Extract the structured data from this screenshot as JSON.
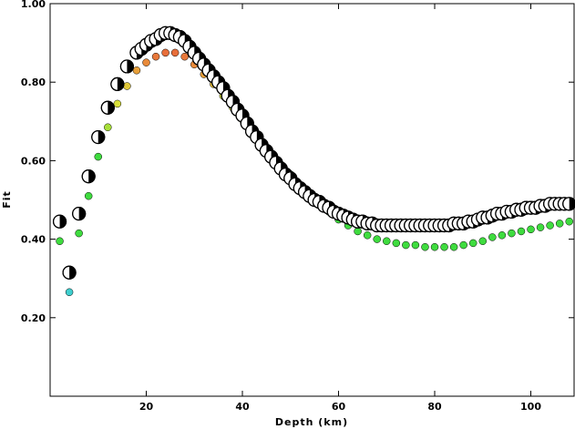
{
  "chart_data": {
    "type": "scatter",
    "title": "",
    "xlabel": "Depth (km)",
    "ylabel": "Fit",
    "xlim": [
      0,
      109
    ],
    "ylim": [
      0.0,
      1.0
    ],
    "xticks": [
      20,
      40,
      60,
      80,
      100
    ],
    "xtick_labels": [
      "20",
      "40",
      "60",
      "80",
      "100"
    ],
    "yticks": [
      0.2,
      0.4,
      0.6,
      0.8,
      1.0
    ],
    "ytick_labels": [
      "0.20",
      "0.40",
      "0.60",
      "0.80",
      "1.00"
    ],
    "grid": false,
    "legend": "none",
    "series": [
      {
        "marker": "filled-circle",
        "x": [
          2,
          4,
          6,
          8,
          10,
          12,
          14,
          16,
          18,
          20,
          22,
          24,
          26,
          28,
          30,
          32,
          34,
          36,
          38,
          40,
          42,
          44,
          46,
          48,
          50,
          52,
          54,
          56,
          58,
          60,
          62,
          64,
          66,
          68,
          70,
          72,
          74,
          76,
          78,
          80,
          82,
          84,
          86,
          88,
          90,
          92,
          94,
          96,
          98,
          100,
          102,
          104,
          106,
          108
        ],
        "y": [
          0.395,
          0.265,
          0.415,
          0.51,
          0.61,
          0.685,
          0.745,
          0.79,
          0.83,
          0.85,
          0.865,
          0.875,
          0.875,
          0.865,
          0.845,
          0.82,
          0.795,
          0.765,
          0.735,
          0.705,
          0.67,
          0.64,
          0.615,
          0.59,
          0.565,
          0.535,
          0.51,
          0.49,
          0.47,
          0.45,
          0.435,
          0.42,
          0.41,
          0.4,
          0.395,
          0.39,
          0.385,
          0.385,
          0.38,
          0.38,
          0.38,
          0.38,
          0.385,
          0.39,
          0.395,
          0.405,
          0.41,
          0.415,
          0.42,
          0.425,
          0.43,
          0.435,
          0.44,
          0.445
        ],
        "colors": [
          "#3fdc3f",
          "#3fcfcf",
          "#3fdc3f",
          "#3fdc3f",
          "#3fdc3f",
          "#a8e03a",
          "#d8e03a",
          "#e0c83a",
          "#e8a03a",
          "#e88a3a",
          "#e8783a",
          "#e86e3a",
          "#e86e3a",
          "#e8783a",
          "#e88a3a",
          "#e8a03a",
          "#e8c03a",
          "#d8e03a",
          "#d8e03a",
          "#c0e03a",
          "#a8e03a",
          "#90e03a",
          "#6fdc3f",
          "#6fdc3f",
          "#3fdc3f",
          "#3fdc3f",
          "#3fdc3f",
          "#3fdc3f",
          "#3fdc3f",
          "#3fdc3f",
          "#3fdc3f",
          "#3fdc3f",
          "#3fdc3f",
          "#3fdc3f",
          "#3fdc3f",
          "#3fdc3f",
          "#3fdc3f",
          "#3fdc3f",
          "#3fdc3f",
          "#3fdc3f",
          "#3fdc3f",
          "#3fdc3f",
          "#3fdc3f",
          "#3fdc3f",
          "#3fdc3f",
          "#3fdc3f",
          "#3fdc3f",
          "#3fdc3f",
          "#3fdc3f",
          "#3fdc3f",
          "#3fdc3f",
          "#3fdc3f",
          "#3fdc3f",
          "#3fdc3f"
        ]
      },
      {
        "marker": "beachball",
        "x": [
          2,
          4,
          6,
          8,
          10,
          12,
          14,
          16,
          18,
          19,
          20,
          21,
          22,
          23,
          24,
          25,
          26,
          27,
          28,
          29,
          30,
          31,
          32,
          33,
          34,
          35,
          36,
          37,
          38,
          39,
          40,
          41,
          42,
          43,
          44,
          45,
          46,
          47,
          48,
          49,
          50,
          51,
          52,
          53,
          54,
          55,
          56,
          57,
          58,
          59,
          60,
          61,
          62,
          63,
          64,
          65,
          66,
          67,
          68,
          69,
          70,
          71,
          72,
          73,
          74,
          75,
          76,
          77,
          78,
          79,
          80,
          81,
          82,
          83,
          84,
          85,
          86,
          87,
          88,
          89,
          90,
          91,
          92,
          93,
          94,
          95,
          96,
          97,
          98,
          99,
          100,
          101,
          102,
          103,
          104,
          105,
          106,
          107,
          108
        ],
        "y": [
          0.445,
          0.315,
          0.465,
          0.56,
          0.66,
          0.735,
          0.795,
          0.84,
          0.875,
          0.885,
          0.895,
          0.905,
          0.91,
          0.92,
          0.925,
          0.925,
          0.92,
          0.915,
          0.905,
          0.89,
          0.875,
          0.86,
          0.845,
          0.83,
          0.815,
          0.8,
          0.785,
          0.765,
          0.75,
          0.73,
          0.715,
          0.695,
          0.675,
          0.66,
          0.64,
          0.625,
          0.61,
          0.595,
          0.58,
          0.565,
          0.555,
          0.54,
          0.53,
          0.52,
          0.51,
          0.5,
          0.495,
          0.485,
          0.48,
          0.47,
          0.465,
          0.46,
          0.455,
          0.45,
          0.445,
          0.445,
          0.44,
          0.44,
          0.435,
          0.435,
          0.435,
          0.435,
          0.435,
          0.435,
          0.435,
          0.435,
          0.435,
          0.435,
          0.435,
          0.435,
          0.435,
          0.435,
          0.435,
          0.435,
          0.44,
          0.44,
          0.44,
          0.445,
          0.445,
          0.45,
          0.455,
          0.455,
          0.46,
          0.465,
          0.465,
          0.47,
          0.47,
          0.475,
          0.475,
          0.48,
          0.48,
          0.48,
          0.485,
          0.485,
          0.49,
          0.49,
          0.49,
          0.49,
          0.49
        ]
      }
    ]
  }
}
